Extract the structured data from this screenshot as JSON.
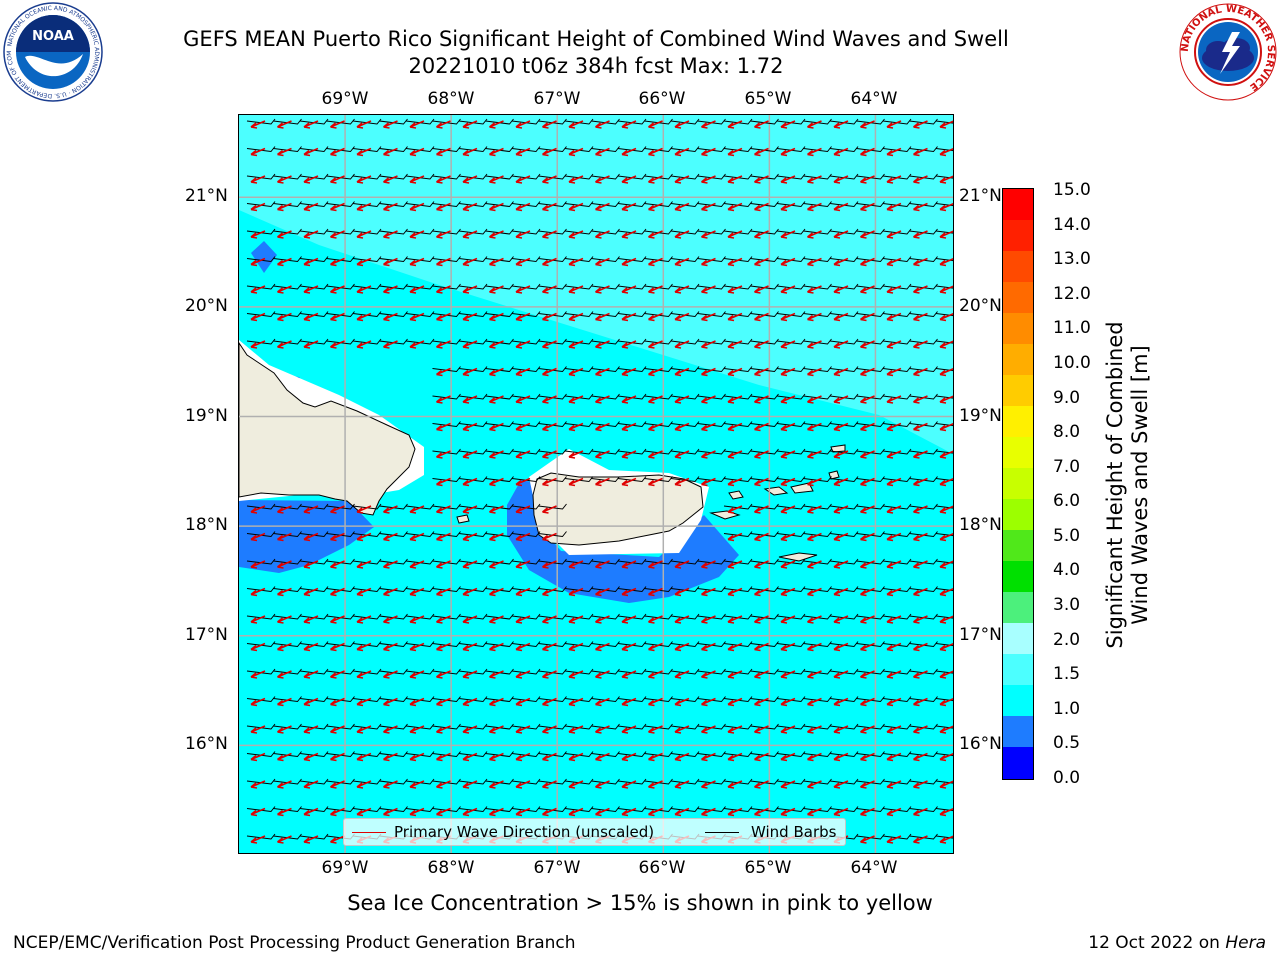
{
  "header": {
    "title_line1": "GEFS MEAN Puerto Rico Significant Height of Combined Wind Waves and Swell",
    "title_line2": "20221010 t06z 384h fcst   Max: 1.72",
    "left_logo": {
      "name": "noaa-logo",
      "text": "NOAA",
      "ring_text": "NATIONAL OCEANIC AND ATMOSPHERIC ADMINISTRATION · U.S. DEPARTMENT OF COMMERCE"
    },
    "right_logo": {
      "name": "nws-logo",
      "ring_text": "NATIONAL WEATHER SERVICE"
    }
  },
  "map": {
    "lon_labels": [
      "69°W",
      "68°W",
      "67°W",
      "66°W",
      "65°W",
      "64°W"
    ],
    "lat_labels": [
      "21°N",
      "20°N",
      "19°N",
      "18°N",
      "17°N",
      "16°N"
    ],
    "extent": {
      "lon_min": -70.0,
      "lon_max": -63.25,
      "lat_min": 15.0,
      "lat_max": 21.75
    },
    "colors": {
      "ocean_main": "#00ffff",
      "ocean_light": "#4cffff",
      "shallow": "#1e7cff",
      "land": "#efedde",
      "no_data": "#ffffff",
      "gridline": "#b0b0b0"
    },
    "legend": {
      "wave_label": "Primary Wave Direction (unscaled)",
      "barb_label": "Wind Barbs",
      "wave_color": "#e00000",
      "barb_color": "#000000"
    }
  },
  "colorbar": {
    "title_line1": "Significant Height of Combined",
    "title_line2": "Wind Waves and Swell [m]",
    "tick_labels": [
      "15.0",
      "14.0",
      "13.0",
      "12.0",
      "11.0",
      "10.0",
      "9.0",
      "8.0",
      "7.0",
      "6.0",
      "5.0",
      "4.0",
      "3.0",
      "2.0",
      "1.5",
      "1.0",
      "0.5",
      "0.0"
    ],
    "segment_colors": [
      "#ff0000",
      "#ff2000",
      "#ff4a00",
      "#ff6a00",
      "#ff8c00",
      "#ffad00",
      "#ffcc00",
      "#fff000",
      "#e8ff00",
      "#c8ff00",
      "#9cff00",
      "#50e81a",
      "#00e000",
      "#4cf07c",
      "#a8ffff",
      "#4cffff",
      "#00ffff",
      "#1e7cff",
      "#0000ff"
    ]
  },
  "footer": {
    "caption": "Sea Ice Concentration > 15% is shown in pink to yellow",
    "left": "NCEP/EMC/Verification Post Processing Product Generation Branch",
    "right_prefix": "12 Oct 2022 on ",
    "right_host": "Hera"
  }
}
